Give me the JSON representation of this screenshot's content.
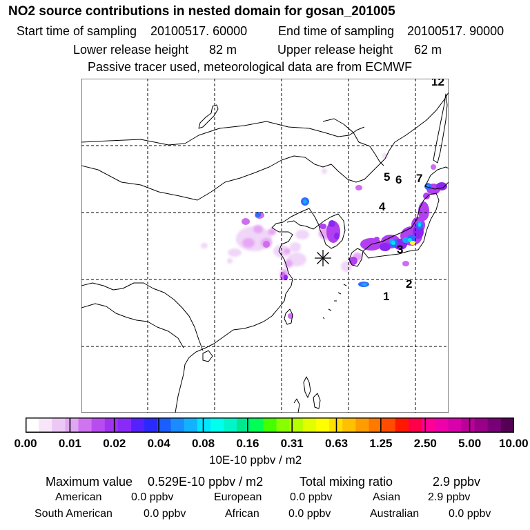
{
  "header": {
    "title": "NO2 source contributions in nested domain for gosan_201005",
    "start_label": "Start time of sampling",
    "start_value": "20100517. 60000",
    "end_label": "End time of sampling",
    "end_value": "20100517. 90000",
    "lower_label": "Lower release height",
    "lower_value": "82 m",
    "upper_label": "Upper release height",
    "upper_value": "62 m",
    "info": "Passive tracer used, meteorological data are from ECMWF"
  },
  "map": {
    "region_labels": [
      "1",
      "2",
      "3",
      "4",
      "5",
      "6",
      "7",
      "12"
    ],
    "receptor_symbol": "✳",
    "plume_colors": [
      "#f0d6f8",
      "#e6a8f4",
      "#cf6cf0",
      "#b23ff0",
      "#8c26f2",
      "#2f6bff",
      "#18a8ff",
      "#00e6e6",
      "#ffff33"
    ]
  },
  "colorbar": {
    "colors": [
      "#ffffff",
      "#f6e6f8",
      "#ecc8f5",
      "#e0a8f3",
      "#cf73f0",
      "#b84cf0",
      "#a033f0",
      "#8a2af8",
      "#5522ff",
      "#2a2aff",
      "#1a5eff",
      "#1a8cff",
      "#12b2ff",
      "#00e6ff",
      "#00ffee",
      "#00f5c8",
      "#00e88e",
      "#00ff55",
      "#44ff00",
      "#88ff00",
      "#b6ff00",
      "#e2ff00",
      "#ffff00",
      "#ffe000",
      "#ffc000",
      "#ff9c00",
      "#ff7800",
      "#ff4c00",
      "#ff1800",
      "#ff0048",
      "#ff0096",
      "#ee00aa",
      "#d800aa",
      "#bb0099",
      "#990088",
      "#770077",
      "#550055"
    ],
    "tick_labels": [
      "0.00",
      "0.01",
      "0.02",
      "0.04",
      "0.08",
      "0.16",
      "0.31",
      "0.63",
      "1.25",
      "2.50",
      "5.00",
      "10.00"
    ],
    "unit": "10E-10 ppbv / m2"
  },
  "footer": {
    "max_label": "Maximum value",
    "max_value": "0.529E-10 ppbv / m2",
    "total_label": "Total mixing ratio",
    "total_value": "2.9 ppbv",
    "regions": [
      {
        "name": "American",
        "value": "0.0 ppbv"
      },
      {
        "name": "European",
        "value": "0.0 ppbv"
      },
      {
        "name": "Asian",
        "value": "2.9 ppbv"
      },
      {
        "name": "South American",
        "value": "0.0 ppbv"
      },
      {
        "name": "African",
        "value": "0.0 ppbv"
      },
      {
        "name": "Australian",
        "value": "0.0 ppbv"
      }
    ]
  }
}
